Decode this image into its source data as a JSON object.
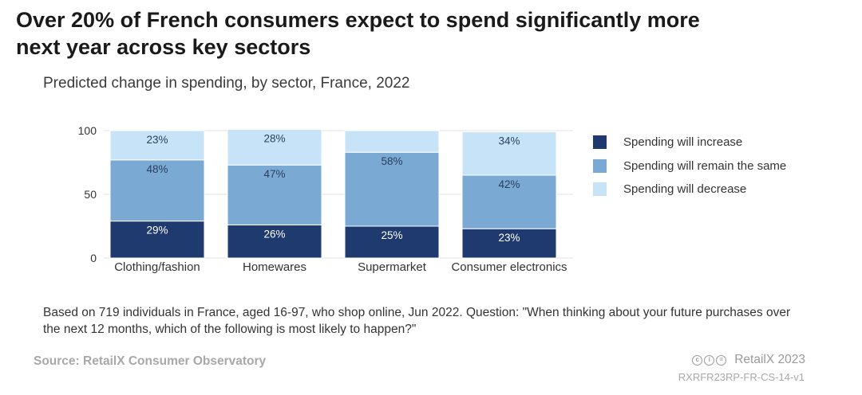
{
  "headline": "Over 20% of French consumers expect to spend significantly more next year across key sectors",
  "subtitle": "Predicted change in spending, by sector, France, 2022",
  "chart_data": {
    "type": "bar",
    "stacked": true,
    "categories": [
      "Clothing/fashion",
      "Homewares",
      "Supermarket",
      "Consumer electronics"
    ],
    "series": [
      {
        "name": "Spending will increase",
        "color": "#1f3a6e",
        "values": [
          29,
          26,
          25,
          23
        ],
        "labels": [
          "29%",
          "26%",
          "25%",
          "23%"
        ],
        "label_color": "#ffffff"
      },
      {
        "name": "Spending will remain the same",
        "color": "#7aaad4",
        "values": [
          48,
          47,
          58,
          42
        ],
        "labels": [
          "48%",
          "47%",
          "58%",
          "42%"
        ],
        "label_color": "#2b3f5c"
      },
      {
        "name": "Spending will decrease",
        "color": "#c6e3f7",
        "values": [
          23,
          28,
          17,
          34
        ],
        "labels": [
          "23%",
          "28%",
          "",
          "34%"
        ],
        "label_color": "#2b3f5c"
      }
    ],
    "ylim": [
      0,
      100
    ],
    "yticks": [
      0,
      50,
      100
    ],
    "xlabel": "",
    "ylabel": "",
    "legend": "right"
  },
  "note": "Based on 719 individuals in France, aged 16-97, who shop online, Jun 2022. Question: \"When thinking about your future purchases over the next 12 months, which of the following is most likely to happen?\"",
  "source": "Source: RetailX Consumer Observatory",
  "brand": "RetailX 2023",
  "code": "RXRFR23RP-FR-CS-14-v1"
}
